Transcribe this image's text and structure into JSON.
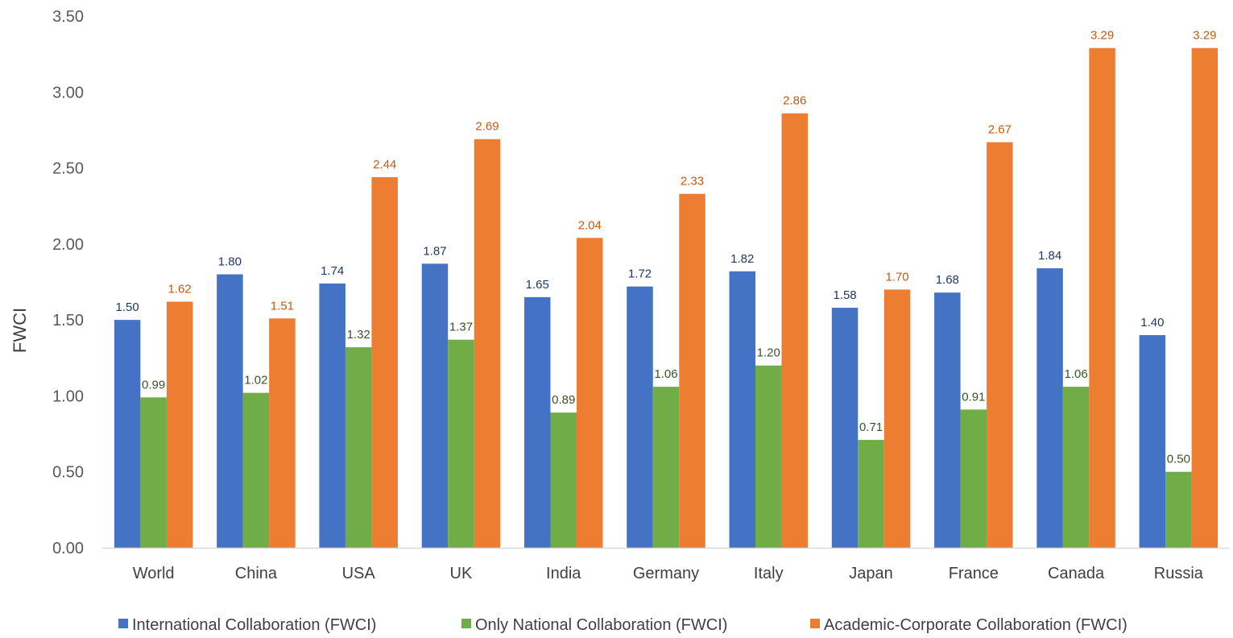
{
  "chart_data": {
    "type": "bar",
    "title": "",
    "xlabel": "",
    "ylabel": "FWCI",
    "ylim": [
      0,
      3.5
    ],
    "yticks": [
      "0.00",
      "0.50",
      "1.00",
      "1.50",
      "2.00",
      "2.50",
      "3.00",
      "3.50"
    ],
    "grid": false,
    "legend_position": "bottom",
    "categories": [
      "World",
      "China",
      "USA",
      "UK",
      "India",
      "Germany",
      "Italy",
      "Japan",
      "France",
      "Canada",
      "Russia"
    ],
    "series": [
      {
        "name": "International Collaboration (FWCI)",
        "color": "#4472C4",
        "label_color": "#203864",
        "values": [
          1.5,
          1.8,
          1.74,
          1.87,
          1.65,
          1.72,
          1.82,
          1.58,
          1.68,
          1.84,
          1.4
        ],
        "labels": [
          "1.50",
          "1.80",
          "1.74",
          "1.87",
          "1.65",
          "1.72",
          "1.82",
          "1.58",
          "1.68",
          "1.84",
          "1.40"
        ]
      },
      {
        "name": "Only National Collaboration (FWCI)",
        "color": "#70AD47",
        "label_color": "#375623",
        "values": [
          0.99,
          1.02,
          1.32,
          1.37,
          0.89,
          1.06,
          1.2,
          0.71,
          0.91,
          1.06,
          0.5
        ],
        "labels": [
          "0.99",
          "1.02",
          "1.32",
          "1.37",
          "0.89",
          "1.06",
          "1.20",
          "0.71",
          "0.91",
          "1.06",
          "0.50"
        ]
      },
      {
        "name": "Academic-Corporate Collaboration (FWCI)",
        "color": "#ED7D31",
        "label_color": "#C55A11",
        "values": [
          1.62,
          1.51,
          2.44,
          2.69,
          2.04,
          2.33,
          2.86,
          1.7,
          2.67,
          3.29,
          3.29
        ],
        "labels": [
          "1.62",
          "1.51",
          "2.44",
          "2.69",
          "2.04",
          "2.33",
          "2.86",
          "1.70",
          "2.67",
          "3.29",
          "3.29"
        ]
      }
    ]
  }
}
